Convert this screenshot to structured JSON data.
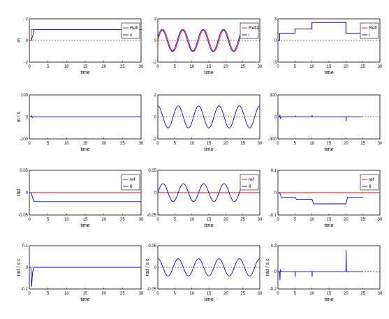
{
  "colors": {
    "red": "#ff0000",
    "blue": "#0000ff",
    "black": "#000000",
    "white": "#ffffff"
  },
  "chart_data": [
    {
      "type": "line",
      "xlabel": "time",
      "ylabel": "m",
      "xlim": [
        0,
        30
      ],
      "ylim": [
        -2,
        2
      ],
      "xticks": [
        "0",
        "5",
        "10",
        "15",
        "20",
        "25",
        "30"
      ],
      "yticks": [
        "2",
        "0",
        "-2"
      ],
      "legend": [
        "Refl",
        "x"
      ],
      "series": [
        {
          "name": "Refl",
          "color": "#ff0000",
          "x": [
            0,
            0.5,
            0.5,
            30
          ],
          "y": [
            0,
            0,
            1,
            1
          ]
        },
        {
          "name": "x",
          "color": "#0000ff",
          "x": [
            0,
            0.5,
            0.9,
            1.3,
            30
          ],
          "y": [
            0,
            0,
            0.4,
            1,
            1
          ]
        }
      ]
    },
    {
      "type": "line",
      "xlabel": "time",
      "ylabel": "",
      "xlim": [
        0,
        30
      ],
      "ylim": [
        -2,
        2
      ],
      "xticks": [
        "0",
        "5",
        "10",
        "15",
        "20",
        "25",
        "30"
      ],
      "yticks": [
        "2",
        "0",
        "-2"
      ],
      "legend": [
        "Refl2",
        "i"
      ],
      "series": [
        {
          "name": "Refl2",
          "color": "#ff0000",
          "shape": "sine",
          "amp": 1,
          "period": 6,
          "phase": 0,
          "t0": 0,
          "t1": 25
        },
        {
          "name": "i",
          "color": "#0000ff",
          "shape": "sine",
          "amp": 1,
          "period": 6,
          "phase": 0.3,
          "t0": 0,
          "t1": 25
        }
      ]
    },
    {
      "type": "line",
      "xlabel": "time",
      "ylabel": "",
      "xlim": [
        0,
        30
      ],
      "ylim": [
        -3,
        3
      ],
      "xticks": [
        "0",
        "5",
        "10",
        "15",
        "20",
        "25",
        "30"
      ],
      "yticks": [
        "3",
        "0",
        "-3"
      ],
      "legend": [
        "Refl",
        "i"
      ],
      "series": [
        {
          "name": "Refl",
          "color": "#ff0000",
          "x": [
            0,
            0.5,
            0.5,
            5,
            5,
            10,
            10,
            20,
            20,
            25
          ],
          "y": [
            0,
            0,
            1,
            1,
            1.6,
            1.6,
            2.5,
            2.5,
            1,
            1
          ]
        },
        {
          "name": "i",
          "color": "#0000ff",
          "x": [
            0,
            0.5,
            0.5,
            5,
            5,
            10,
            10,
            20,
            20,
            25
          ],
          "y": [
            0,
            0,
            1,
            1,
            1.6,
            1.6,
            2.5,
            2.5,
            1,
            1
          ]
        }
      ]
    },
    {
      "type": "line",
      "xlabel": "time",
      "ylabel": "m / s",
      "xlim": [
        0,
        30
      ],
      "ylim": [
        -100,
        100
      ],
      "xticks": [
        "0",
        "5",
        "10",
        "15",
        "20",
        "25",
        "30"
      ],
      "yticks": [
        "100",
        "0",
        "-100"
      ],
      "legend": [],
      "series": [
        {
          "color": "#0000ff",
          "x": [
            0,
            0.4,
            0.6,
            0.8,
            1.0,
            30
          ],
          "y": [
            0,
            0,
            6,
            -4,
            0,
            0
          ]
        }
      ]
    },
    {
      "type": "line",
      "xlabel": "time",
      "ylabel": "",
      "xlim": [
        0,
        30
      ],
      "ylim": [
        -2,
        2
      ],
      "xticks": [
        "0",
        "5",
        "10",
        "15",
        "20",
        "25",
        "30"
      ],
      "yticks": [
        "2",
        "0",
        "-2"
      ],
      "legend": [],
      "series": [
        {
          "color": "#0000ff",
          "shape": "sine",
          "amp": 1,
          "period": 6,
          "phase": 1.57,
          "t0": 0,
          "t1": 30
        }
      ]
    },
    {
      "type": "line",
      "xlabel": "time",
      "ylabel": "",
      "xlim": [
        0,
        30
      ],
      "ylim": [
        -300,
        300
      ],
      "xticks": [
        "0",
        "5",
        "10",
        "15",
        "20",
        "25",
        "30"
      ],
      "yticks": [
        "300",
        "0",
        "-300"
      ],
      "legend": [],
      "series": [
        {
          "color": "#0000ff",
          "x": [
            0,
            0.5,
            0.6,
            0.7,
            1,
            5,
            5.05,
            5.1,
            10,
            10.05,
            10.1,
            20,
            20.05,
            20.1,
            25
          ],
          "y": [
            0,
            0,
            30,
            -20,
            0,
            0,
            20,
            0,
            0,
            25,
            0,
            0,
            -60,
            0,
            0
          ]
        }
      ]
    },
    {
      "type": "line",
      "xlabel": "time",
      "ylabel": "rad",
      "xlim": [
        0,
        30
      ],
      "ylim": [
        -0.05,
        0.05
      ],
      "xticks": [
        "0",
        "5",
        "10",
        "15",
        "20",
        "25",
        "30"
      ],
      "yticks": [
        "0.05",
        "0",
        "-0.05"
      ],
      "legend": [
        "ref",
        "θ"
      ],
      "series": [
        {
          "name": "ref",
          "color": "#ff0000",
          "x": [
            0,
            30
          ],
          "y": [
            0,
            0
          ]
        },
        {
          "name": "θ",
          "color": "#0000ff",
          "x": [
            0,
            0.5,
            1.2,
            30
          ],
          "y": [
            0,
            0,
            -0.02,
            -0.02
          ]
        }
      ]
    },
    {
      "type": "line",
      "xlabel": "time",
      "ylabel": "",
      "xlim": [
        0,
        30
      ],
      "ylim": [
        -0.05,
        0.05
      ],
      "xticks": [
        "0",
        "5",
        "10",
        "15",
        "20",
        "25",
        "30"
      ],
      "yticks": [
        "0.05",
        "0",
        "-0.05"
      ],
      "legend": [
        "ref",
        "θ"
      ],
      "series": [
        {
          "name": "ref",
          "color": "#ff0000",
          "x": [
            0,
            30
          ],
          "y": [
            0,
            0
          ]
        },
        {
          "name": "θ",
          "color": "#0000ff",
          "shape": "sine",
          "amp": 0.02,
          "period": 6,
          "phase": 0,
          "t0": 0,
          "t1": 25
        }
      ]
    },
    {
      "type": "line",
      "xlabel": "time",
      "ylabel": "",
      "xlim": [
        0,
        30
      ],
      "ylim": [
        -0.1,
        0.1
      ],
      "xticks": [
        "0",
        "5",
        "10",
        "15",
        "20",
        "25",
        "30"
      ],
      "yticks": [
        "0.1",
        "0",
        "-0.1"
      ],
      "legend": [
        "ref",
        "θ"
      ],
      "series": [
        {
          "name": "ref",
          "color": "#ff0000",
          "x": [
            0,
            30
          ],
          "y": [
            0,
            0
          ]
        },
        {
          "name": "θ",
          "color": "#0000ff",
          "x": [
            0,
            0.5,
            1,
            5,
            5.5,
            10,
            10.5,
            20,
            20.5,
            25
          ],
          "y": [
            0,
            0,
            -0.02,
            -0.02,
            -0.03,
            -0.03,
            -0.05,
            -0.05,
            -0.02,
            -0.02
          ]
        }
      ]
    },
    {
      "type": "line",
      "xlabel": "time",
      "ylabel": "rad / s c",
      "xlim": [
        0,
        30
      ],
      "ylim": [
        -0.1,
        0.1
      ],
      "xticks": [
        "0",
        "5",
        "10",
        "15",
        "20",
        "25",
        "30"
      ],
      "yticks": [
        "0.1",
        "0",
        "-0.1"
      ],
      "legend": [],
      "series": [
        {
          "color": "#0000ff",
          "x": [
            0,
            0.4,
            0.6,
            0.9,
            1.3,
            30
          ],
          "y": [
            0,
            0,
            -0.09,
            -0.02,
            0,
            0
          ]
        }
      ]
    },
    {
      "type": "line",
      "xlabel": "time",
      "ylabel": "rad / s c",
      "xlim": [
        0,
        30
      ],
      "ylim": [
        -0.05,
        0.05
      ],
      "xticks": [
        "0",
        "5",
        "10",
        "15",
        "20",
        "25",
        "30"
      ],
      "yticks": [
        "0.05",
        "0",
        "-0.05"
      ],
      "legend": [],
      "series": [
        {
          "color": "#0000ff",
          "shape": "sine",
          "amp": 0.02,
          "period": 6,
          "phase": 1.57,
          "t0": 0,
          "t1": 30
        }
      ]
    },
    {
      "type": "line",
      "xlabel": "time",
      "ylabel": "rad / s c",
      "xlim": [
        0,
        30
      ],
      "ylim": [
        -0.2,
        0.3
      ],
      "xticks": [
        "0",
        "5",
        "10",
        "15",
        "20",
        "25",
        "30"
      ],
      "yticks": [
        "0.3",
        "0",
        "-0.2"
      ],
      "legend": [],
      "series": [
        {
          "color": "#0000ff",
          "x": [
            0,
            0.5,
            0.6,
            0.7,
            1,
            5,
            5.05,
            5.1,
            10,
            10.05,
            10.1,
            20,
            20.05,
            20.15,
            20.3,
            25
          ],
          "y": [
            0,
            0,
            -0.1,
            0.02,
            0,
            0,
            -0.06,
            0,
            0,
            -0.06,
            0,
            0,
            0.25,
            0.02,
            0,
            0
          ]
        }
      ]
    }
  ]
}
